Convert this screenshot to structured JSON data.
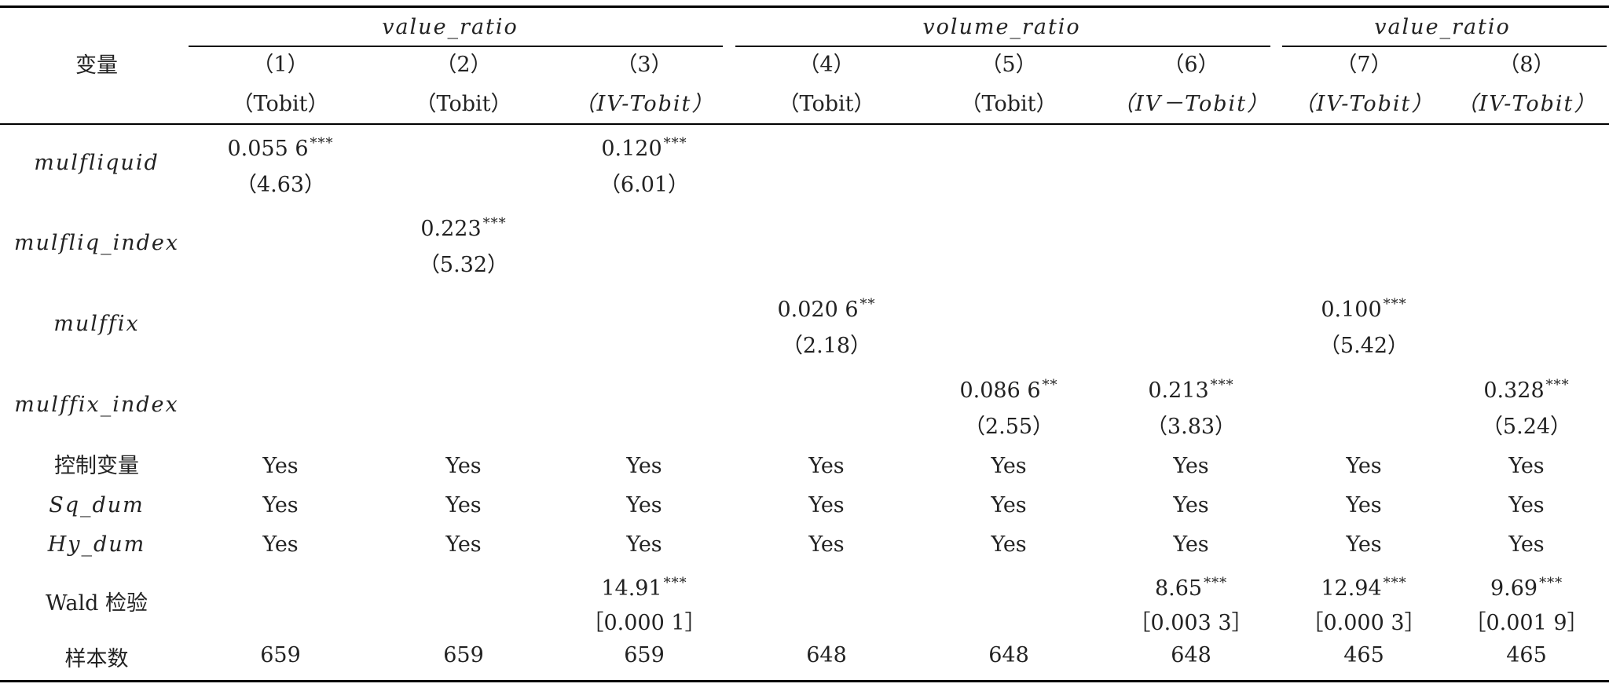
{
  "stub_header": "变量",
  "group_headers": [
    "value_ratio",
    "volume_ratio",
    "value_ratio"
  ],
  "column_numbers": [
    "（1）",
    "（2）",
    "（3）",
    "（4）",
    "（5）",
    "（6）",
    "（7）",
    "（8）"
  ],
  "column_methods": [
    "（Tobit）",
    "（Tobit）",
    "（IV-Tobit）",
    "（Tobit）",
    "（Tobit）",
    "（IV－Tobit）",
    "（IV-Tobit）",
    "（IV-Tobit）"
  ],
  "rows": [
    {
      "label": "mulfliquid",
      "italic": true,
      "coefs": [
        "0.055 6",
        "",
        "0.120",
        "",
        "",
        "",
        "",
        ""
      ],
      "stars": [
        "***",
        "",
        "***",
        "",
        "",
        "",
        "",
        ""
      ],
      "stats": [
        "（4.63）",
        "",
        "（6.01）",
        "",
        "",
        "",
        "",
        ""
      ]
    },
    {
      "label": "mulfliq_index",
      "italic": true,
      "coefs": [
        "",
        "0.223",
        "",
        "",
        "",
        "",
        "",
        ""
      ],
      "stars": [
        "",
        "***",
        "",
        "",
        "",
        "",
        "",
        ""
      ],
      "stats": [
        "",
        "（5.32）",
        "",
        "",
        "",
        "",
        "",
        ""
      ]
    },
    {
      "label": "mulffix",
      "italic": true,
      "coefs": [
        "",
        "",
        "",
        "0.020 6",
        "",
        "",
        "0.100",
        ""
      ],
      "stars": [
        "",
        "",
        "",
        "**",
        "",
        "",
        "***",
        ""
      ],
      "stats": [
        "",
        "",
        "",
        "（2.18）",
        "",
        "",
        "（5.42）",
        ""
      ]
    },
    {
      "label": "mulffix_index",
      "italic": true,
      "coefs": [
        "",
        "",
        "",
        "",
        "0.086 6",
        "0.213",
        "",
        "0.328"
      ],
      "stars": [
        "",
        "",
        "",
        "",
        "**",
        "***",
        "",
        "***"
      ],
      "stats": [
        "",
        "",
        "",
        "",
        "（2.55）",
        "（3.83）",
        "",
        "（5.24）"
      ]
    }
  ],
  "yes_rows": [
    {
      "label": "控制变量",
      "italic": false,
      "values": [
        "Yes",
        "Yes",
        "Yes",
        "Yes",
        "Yes",
        "Yes",
        "Yes",
        "Yes"
      ]
    },
    {
      "label": "Sq_dum",
      "italic": true,
      "values": [
        "Yes",
        "Yes",
        "Yes",
        "Yes",
        "Yes",
        "Yes",
        "Yes",
        "Yes"
      ]
    },
    {
      "label": "Hy_dum",
      "italic": true,
      "values": [
        "Yes",
        "Yes",
        "Yes",
        "Yes",
        "Yes",
        "Yes",
        "Yes",
        "Yes"
      ]
    }
  ],
  "wald": {
    "label": "Wald 检验",
    "values": [
      "",
      "",
      "14.91",
      "",
      "",
      "8.65",
      "12.94",
      "9.69"
    ],
    "stars": [
      "",
      "",
      "***",
      "",
      "",
      "***",
      "***",
      "***"
    ],
    "pvalues": [
      "",
      "",
      "［0.000 1］",
      "",
      "",
      "［0.003 3］",
      "［0.000 3］",
      "［0.001 9］"
    ]
  },
  "n_row": {
    "label": "样本数",
    "values": [
      "659",
      "659",
      "659",
      "648",
      "648",
      "648",
      "465",
      "465"
    ]
  }
}
